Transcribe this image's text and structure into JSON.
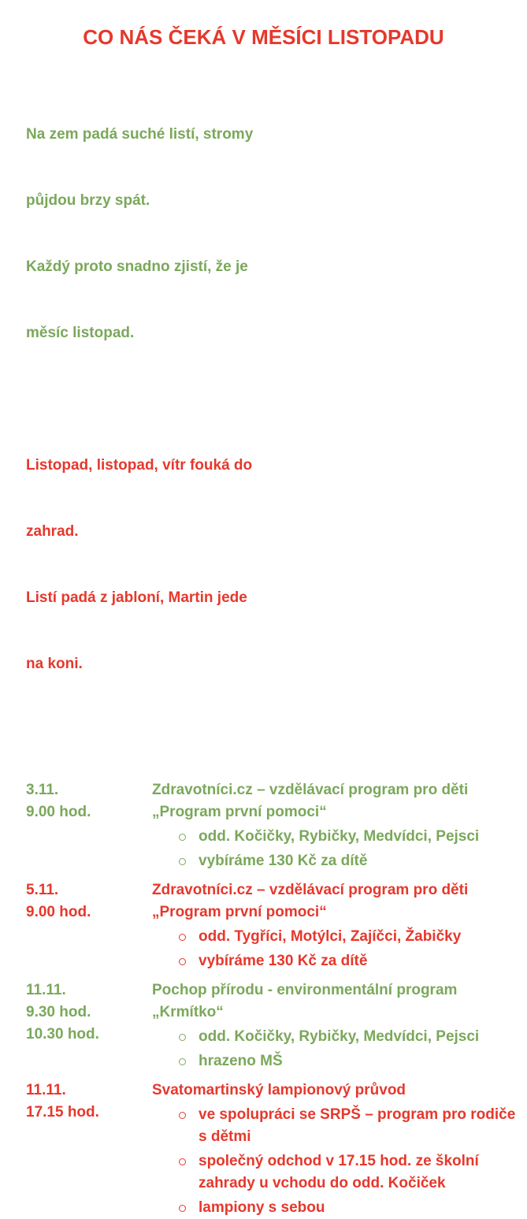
{
  "colors": {
    "green": "#7aa85a",
    "red": "#e6382c",
    "background": "#ffffff"
  },
  "title": "CO NÁS ČEKÁ V MĚSÍCI LISTOPADU",
  "poem_green": {
    "lines": [
      "Na zem padá suché listí, stromy",
      "půjdou brzy spát.",
      "Každý proto snadno zjistí, že je",
      "měsíc listopad."
    ]
  },
  "poem_red": {
    "lines": [
      "Listopad, listopad, vítr fouká do",
      "zahrad.",
      "Listí padá z jabloní, Martin jede",
      "na koni."
    ]
  },
  "schedule": [
    {
      "color": "green",
      "times": [
        "3.11.",
        "9.00 hod."
      ],
      "title_lines": [
        "Zdravotníci.cz – vzdělávací program pro děti",
        "„Program první pomoci“"
      ],
      "bullets": [
        "odd. Kočičky, Rybičky, Medvídci, Pejsci",
        "vybíráme 130 Kč za dítě"
      ]
    },
    {
      "color": "red",
      "times": [
        "5.11.",
        "9.00 hod."
      ],
      "title_lines": [
        "Zdravotníci.cz – vzdělávací program pro děti",
        "„Program první pomoci“"
      ],
      "bullets": [
        "odd. Tygříci, Motýlci, Zajíčci, Žabičky",
        "vybíráme 130 Kč za dítě"
      ]
    },
    {
      "color": "green",
      "times": [
        "11.11.",
        "9.30 hod.",
        "10.30 hod."
      ],
      "title_lines": [
        "Pochop přírodu - environmentální program",
        "„Krmítko“"
      ],
      "bullets": [
        "odd. Kočičky, Rybičky, Medvídci, Pejsci",
        "hrazeno MŠ"
      ]
    },
    {
      "color": "red",
      "times": [
        "11.11.",
        "17.15 hod."
      ],
      "title_lines": [
        "Svatomartinský lampionový průvod"
      ],
      "bullets": [
        "ve spolupráci se SRPŠ – program pro rodiče s dětmi",
        "společný odchod v 17.15 hod. ze školní zahrady u vchodu do odd. Kočiček",
        "lampiony s sebou"
      ]
    }
  ]
}
